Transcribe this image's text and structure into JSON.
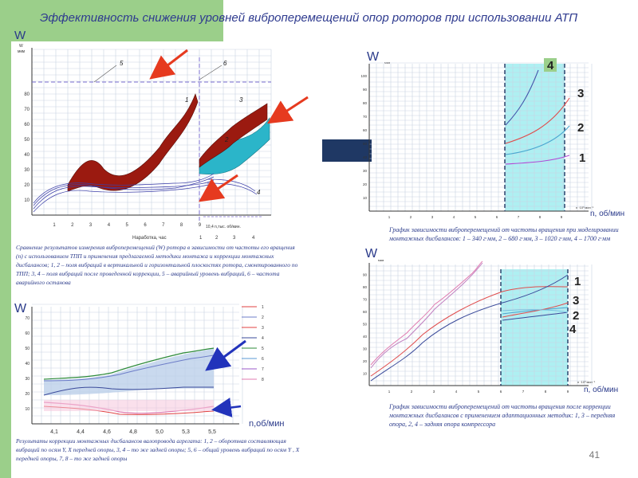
{
  "title": "Эффективность снижения уровней виброперемещений опор роторов при использовании АТП",
  "page_number": "41",
  "chart1": {
    "w_letter": "W",
    "y_unit": "W\nмкм",
    "yticks": [
      "10",
      "20",
      "30",
      "40",
      "50",
      "60",
      "70",
      "80"
    ],
    "xticks": [
      "1",
      "2",
      "3",
      "4",
      "5",
      "6",
      "7",
      "8",
      "9"
    ],
    "x_end_label": "10,4 n,тыс. об/мин.",
    "xlabel": "Наработка, час",
    "xlabel2": [
      "1",
      "2",
      "3",
      "4"
    ],
    "curve_labels": [
      "1",
      "2",
      "3",
      "4",
      "5",
      "6"
    ]
  },
  "caption1": "Сравнение результатов измерения виброперемещений (W) ротора в зависимости от частоты его вращения (n) с использованием ТПП и применения предлагаемой методики монтажа и коррекции монтажных дисбалансов; 1, 2 – поля вибраций в вертикальной и горизонтальной плоскостях ротора, смонтированного по ТПП; 3, 4 – поля вибраций после проведенной коррекции, 5 – аварийный уровень вибраций, 6 – частота аварийного останова",
  "chart2": {
    "w_letter": "W",
    "yticks": [
      "10",
      "20",
      "30",
      "40",
      "50",
      "60",
      "70"
    ],
    "xticks": [
      "4,1",
      "4,4",
      "4,6",
      "4,8",
      "5,0",
      "5,3",
      "5,5"
    ],
    "xlabel": "n,об/мин",
    "legend": [
      "1",
      "2",
      "3",
      "4",
      "5",
      "6",
      "7",
      "8"
    ]
  },
  "caption2": "Результаты коррекции монтажных дисбалансов валопровода агрегата: 1, 2 – оборотная составляющая вибраций по осям Y, X передней опоры, 3, 4 – то же задней опоры; 5, 6 – общий уровень вибраций по осям Y , X передней опоры, 7, 8 – то же задней опоры",
  "chart3": {
    "w_letter": "W",
    "y_unit": "мкм",
    "yticks": [
      "10",
      "20",
      "30",
      "40",
      "50",
      "60",
      "70",
      "80",
      "90",
      "100"
    ],
    "xticks": [
      "1",
      "2",
      "3",
      "4",
      "5",
      "6",
      "7",
      "8",
      "9"
    ],
    "x_unit": "n ·10³ мин⁻¹",
    "xlabel": "n, об/мин",
    "curve_labels": [
      "4",
      "3",
      "2",
      "1"
    ]
  },
  "caption3": "График зависимости виброперемещений от частоты вращения при моделировании монтажных дисбалансов: 1 – 340 г·мм, 2 – 680 г·мм, 3 – 1020 г·мм, 4 – 1700 г·мм",
  "chart4": {
    "w_letter": "W",
    "y_unit": "мкм",
    "yticks": [
      "10",
      "20",
      "30",
      "40",
      "50",
      "60",
      "70",
      "80",
      "90"
    ],
    "xticks": [
      "1",
      "2",
      "3",
      "4",
      "5",
      "6",
      "7",
      "8",
      "9"
    ],
    "x_unit": "n ·10³ мин⁻¹",
    "xlabel": "n, об/мин",
    "curve_labels": [
      "1",
      "3",
      "2",
      "4"
    ]
  },
  "caption4": "График зависимости виброперемещений от частоты вращения после коррекции монтажных дисбалансов с применением адаптационных методик: 1, 3 – передняя опора,    2, 4 – задняя опора компрессора",
  "colors": {
    "green": "#9bcf8a",
    "navy": "#1f3864",
    "cyan": "#aef0f2",
    "darkred": "#9b1a10",
    "teal": "#2bb5c9",
    "arrow": "#e63a1f"
  }
}
